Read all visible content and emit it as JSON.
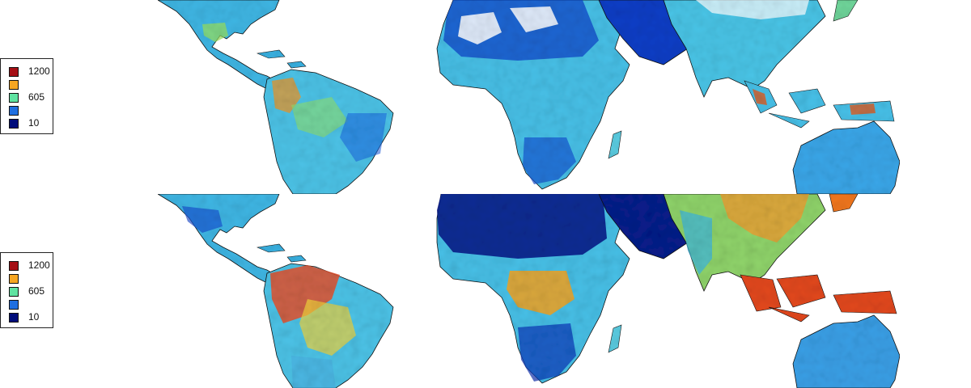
{
  "panels": [
    {
      "id": "top",
      "legend": {
        "items": [
          {
            "label": "1200",
            "color": "#a50f15"
          },
          {
            "label": "",
            "color": "#f5a623"
          },
          {
            "label": "605",
            "color": "#5fe3a1"
          },
          {
            "label": "",
            "color": "#1f6fe0"
          },
          {
            "label": "10",
            "color": "#000c7a"
          }
        ]
      }
    },
    {
      "id": "bottom",
      "legend": {
        "items": [
          {
            "label": "1200",
            "color": "#a50f15"
          },
          {
            "label": "",
            "color": "#f5a623"
          },
          {
            "label": "605",
            "color": "#5fe3a1"
          },
          {
            "label": "",
            "color": "#1f6fe0"
          },
          {
            "label": "10",
            "color": "#000c7a"
          }
        ]
      }
    }
  ],
  "colors": {
    "land_mid": "#47c0e8",
    "land_wet": "#f07a26",
    "land_dry": "#0b2aa8",
    "border": "#111111"
  }
}
